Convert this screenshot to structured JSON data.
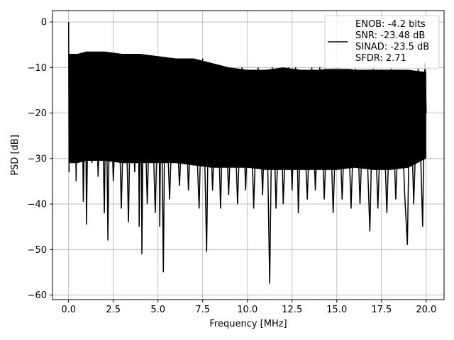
{
  "chart_data": {
    "type": "line",
    "title": "",
    "xlabel": "Frequency [MHz]",
    "ylabel": "PSD [dB]",
    "xlim": [
      -0.9,
      21.0
    ],
    "ylim": [
      -61,
      2.5
    ],
    "xticks": [
      0.0,
      2.5,
      5.0,
      7.5,
      10.0,
      12.5,
      15.0,
      17.5,
      20.0
    ],
    "xtick_labels": [
      "0.0",
      "2.5",
      "5.0",
      "7.5",
      "10.0",
      "12.5",
      "15.0",
      "17.5",
      "20.0"
    ],
    "yticks": [
      0,
      -10,
      -20,
      -30,
      -40,
      -50,
      -60
    ],
    "ytick_labels": [
      "0",
      "−10",
      "−20",
      "−30",
      "−40",
      "−50",
      "−60"
    ],
    "grid": true,
    "legend_position": "top-right",
    "legend_entries": [
      "ENOB: -4.2 bits",
      "SNR: -23.48 dB",
      "SINAD: -23.5 dB",
      "SFDR: 2.71"
    ],
    "series": [
      {
        "color": "#000000",
        "points": [
          [
            0.0,
            0.0
          ],
          [
            0.03,
            -33.0
          ],
          [
            0.06,
            -8.0
          ],
          [
            0.12,
            -27.0
          ],
          [
            0.2,
            -12.0
          ],
          [
            0.28,
            -31.0
          ],
          [
            0.35,
            -9.0
          ],
          [
            0.42,
            -35.0
          ],
          [
            0.5,
            -10.0
          ],
          [
            0.62,
            -27.0
          ],
          [
            0.75,
            -8.0
          ],
          [
            0.82,
            -39.5
          ],
          [
            0.95,
            -12.0
          ],
          [
            1.0,
            -44.5
          ],
          [
            1.12,
            -9.0
          ],
          [
            1.3,
            -31.0
          ],
          [
            1.5,
            -8.0
          ],
          [
            1.65,
            -34.0
          ],
          [
            1.85,
            -9.0
          ],
          [
            2.0,
            -42.0
          ],
          [
            2.1,
            -10.0
          ],
          [
            2.2,
            -48.0
          ],
          [
            2.32,
            -9.0
          ],
          [
            2.5,
            -35.0
          ],
          [
            2.75,
            -8.0
          ],
          [
            2.95,
            -41.0
          ],
          [
            3.15,
            -9.0
          ],
          [
            3.35,
            -44.0
          ],
          [
            3.5,
            -8.0
          ],
          [
            3.7,
            -33.0
          ],
          [
            3.9,
            -10.0
          ],
          [
            3.95,
            -45.0
          ],
          [
            4.05,
            -8.5
          ],
          [
            4.1,
            -51.0
          ],
          [
            4.2,
            -10.0
          ],
          [
            4.4,
            -40.0
          ],
          [
            4.6,
            -9.0
          ],
          [
            4.85,
            -42.0
          ],
          [
            5.05,
            -8.0
          ],
          [
            5.1,
            -45.0
          ],
          [
            5.18,
            -10.0
          ],
          [
            5.3,
            -55.0
          ],
          [
            5.4,
            -11.0
          ],
          [
            5.65,
            -39.0
          ],
          [
            5.9,
            -9.0
          ],
          [
            6.2,
            -36.0
          ],
          [
            6.5,
            -10.0
          ],
          [
            6.7,
            -37.0
          ],
          [
            7.0,
            -9.0
          ],
          [
            7.3,
            -41.0
          ],
          [
            7.5,
            -8.0
          ],
          [
            7.72,
            -50.5
          ],
          [
            7.85,
            -10.0
          ],
          [
            8.05,
            -37.0
          ],
          [
            8.3,
            -11.0
          ],
          [
            8.5,
            -41.0
          ],
          [
            8.7,
            -10.0
          ],
          [
            8.95,
            -38.0
          ],
          [
            9.2,
            -11.0
          ],
          [
            9.45,
            -40.0
          ],
          [
            9.7,
            -10.0
          ],
          [
            9.9,
            -37.0
          ],
          [
            10.15,
            -11.0
          ],
          [
            10.35,
            -41.0
          ],
          [
            10.6,
            -10.0
          ],
          [
            10.85,
            -38.0
          ],
          [
            11.05,
            -11.0
          ],
          [
            11.25,
            -57.5
          ],
          [
            11.4,
            -10.0
          ],
          [
            11.6,
            -41.0
          ],
          [
            11.85,
            -11.0
          ],
          [
            12.0,
            -40.0
          ],
          [
            12.3,
            -10.0
          ],
          [
            12.5,
            -37.0
          ],
          [
            12.7,
            -10.0
          ],
          [
            12.85,
            -42.0
          ],
          [
            13.05,
            -11.0
          ],
          [
            13.35,
            -39.0
          ],
          [
            13.6,
            -10.0
          ],
          [
            13.8,
            -37.0
          ],
          [
            14.05,
            -10.0
          ],
          [
            14.3,
            -39.0
          ],
          [
            14.55,
            -11.0
          ],
          [
            14.8,
            -42.0
          ],
          [
            15.05,
            -10.0
          ],
          [
            15.3,
            -39.0
          ],
          [
            15.55,
            -11.0
          ],
          [
            15.8,
            -41.0
          ],
          [
            16.05,
            -10.0
          ],
          [
            16.3,
            -40.0
          ],
          [
            16.55,
            -11.0
          ],
          [
            16.85,
            -46.0
          ],
          [
            17.05,
            -10.0
          ],
          [
            17.3,
            -41.0
          ],
          [
            17.55,
            -11.0
          ],
          [
            17.8,
            -42.0
          ],
          [
            18.05,
            -10.0
          ],
          [
            18.3,
            -39.0
          ],
          [
            18.55,
            -11.0
          ],
          [
            18.8,
            -38.0
          ],
          [
            18.95,
            -49.0
          ],
          [
            19.1,
            -11.0
          ],
          [
            19.3,
            -40.0
          ],
          [
            19.55,
            -10.0
          ],
          [
            19.8,
            -45.0
          ],
          [
            19.93,
            -9.0
          ],
          [
            20.0,
            -20.0
          ]
        ]
      }
    ],
    "envelope": {
      "upper": [
        [
          0.0,
          -7.0
        ],
        [
          0.5,
          -7.0
        ],
        [
          1.0,
          -6.5
        ],
        [
          2.0,
          -6.5
        ],
        [
          3.0,
          -7.0
        ],
        [
          4.0,
          -7.0
        ],
        [
          5.0,
          -7.5
        ],
        [
          6.0,
          -8.0
        ],
        [
          7.0,
          -8.0
        ],
        [
          8.0,
          -9.0
        ],
        [
          9.0,
          -10.0
        ],
        [
          10.0,
          -10.5
        ],
        [
          11.0,
          -10.5
        ],
        [
          12.0,
          -10.0
        ],
        [
          13.0,
          -10.5
        ],
        [
          14.0,
          -10.5
        ],
        [
          15.0,
          -10.0
        ],
        [
          16.0,
          -10.5
        ],
        [
          17.0,
          -10.5
        ],
        [
          18.0,
          -10.5
        ],
        [
          19.0,
          -10.5
        ],
        [
          20.0,
          -11.0
        ]
      ],
      "lower": [
        [
          0.0,
          -31.0
        ],
        [
          0.5,
          -31.0
        ],
        [
          1.0,
          -30.5
        ],
        [
          2.0,
          -30.5
        ],
        [
          3.0,
          -31.0
        ],
        [
          4.0,
          -31.0
        ],
        [
          5.0,
          -31.0
        ],
        [
          6.0,
          -31.0
        ],
        [
          7.0,
          -31.5
        ],
        [
          8.0,
          -32.0
        ],
        [
          9.0,
          -32.0
        ],
        [
          10.0,
          -32.0
        ],
        [
          11.0,
          -32.5
        ],
        [
          12.0,
          -32.5
        ],
        [
          13.0,
          -32.5
        ],
        [
          14.0,
          -32.5
        ],
        [
          15.0,
          -32.5
        ],
        [
          16.0,
          -32.0
        ],
        [
          17.0,
          -32.5
        ],
        [
          18.0,
          -32.5
        ],
        [
          19.0,
          -32.0
        ],
        [
          20.0,
          -30.0
        ]
      ]
    }
  }
}
